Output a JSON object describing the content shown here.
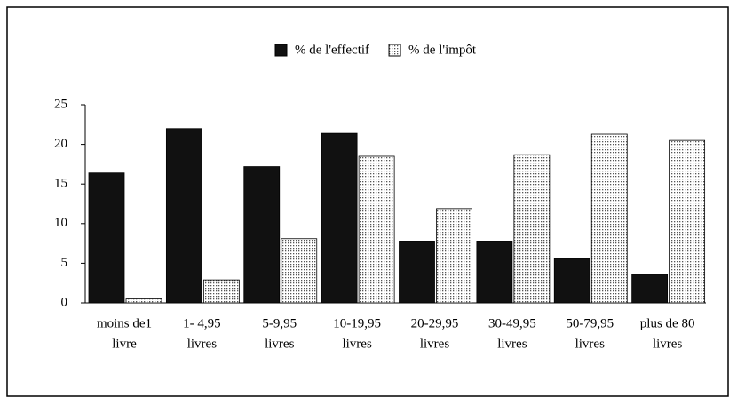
{
  "chart_data": {
    "type": "bar",
    "categories": [
      [
        "moins de1",
        "livre"
      ],
      [
        "1- 4,95",
        "livres"
      ],
      [
        "5-9,95",
        "livres"
      ],
      [
        "10-19,95",
        "livres"
      ],
      [
        "20-29,95",
        "livres"
      ],
      [
        "30-49,95",
        "livres"
      ],
      [
        "50-79,95",
        "livres"
      ],
      [
        "plus de 80",
        "livres"
      ]
    ],
    "series": [
      {
        "name": "% de l'effectif",
        "color": "#111111",
        "values": [
          16.4,
          22,
          17.2,
          21.4,
          7.8,
          7.8,
          5.6,
          3.6
        ]
      },
      {
        "name": "% de l'impôt",
        "color": "#d4d4d4",
        "values": [
          0.5,
          2.9,
          8.1,
          18.5,
          11.9,
          18.7,
          21.3,
          20.5
        ]
      }
    ],
    "ylim": [
      0,
      25
    ],
    "yticks": [
      0,
      5,
      10,
      15,
      20,
      25
    ],
    "legend": "top"
  }
}
